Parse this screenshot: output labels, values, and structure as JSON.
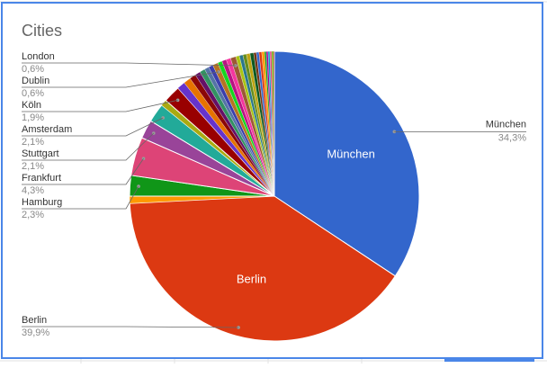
{
  "chart_data": {
    "type": "pie",
    "title": "Cities",
    "categories": [
      "München",
      "Berlin",
      null,
      "Hamburg",
      "Frankfurt",
      "Stuttgart",
      "Amsterdam",
      null,
      "Köln",
      null,
      null,
      null,
      null,
      null,
      null,
      null,
      "Dublin",
      null,
      null,
      null,
      "London",
      null,
      null,
      null,
      null,
      null,
      null,
      null,
      null,
      null,
      null,
      null,
      null,
      null,
      null,
      null
    ],
    "values": [
      34.3,
      39.9,
      0.8,
      2.3,
      4.3,
      2.1,
      2.1,
      0.7,
      1.9,
      0.9,
      0.8,
      0.7,
      0.6,
      0.6,
      0.5,
      0.5,
      0.6,
      0.5,
      0.5,
      0.5,
      0.6,
      0.4,
      0.4,
      0.4,
      0.4,
      0.4,
      0.3,
      0.3,
      0.3,
      0.3,
      0.2,
      0.2,
      0.2,
      0.2,
      0.2,
      0.1
    ],
    "value_labels": [
      "34,3%",
      "39,9%",
      null,
      "2,3%",
      "4,3%",
      "2,1%",
      "2,1%",
      null,
      "1,9%",
      null,
      null,
      null,
      null,
      null,
      null,
      null,
      "0,6%",
      null,
      null,
      null,
      "0,6%",
      null,
      null,
      null,
      null,
      null,
      null,
      null,
      null,
      null,
      null,
      null,
      null,
      null,
      null,
      null
    ],
    "colors": [
      "#3366cc",
      "#dc3912",
      "#ff9900",
      "#109618",
      "#dd4477",
      "#994499",
      "#22aa99",
      "#aaaa11",
      "#990000",
      "#6633cc",
      "#e67300",
      "#8b0707",
      "#651067",
      "#329262",
      "#5574a6",
      "#3b3eac",
      "#b77322",
      "#16d620",
      "#b91383",
      "#f4359e",
      "#9c5935",
      "#a9c413",
      "#2a778d",
      "#668d1c",
      "#bea413",
      "#0c5922",
      "#743411",
      "#3366cc",
      "#dc3912",
      "#ff9900",
      "#109618",
      "#990099",
      "#0099c6",
      "#dd4477",
      "#66aa00",
      "#b82e2e"
    ]
  }
}
